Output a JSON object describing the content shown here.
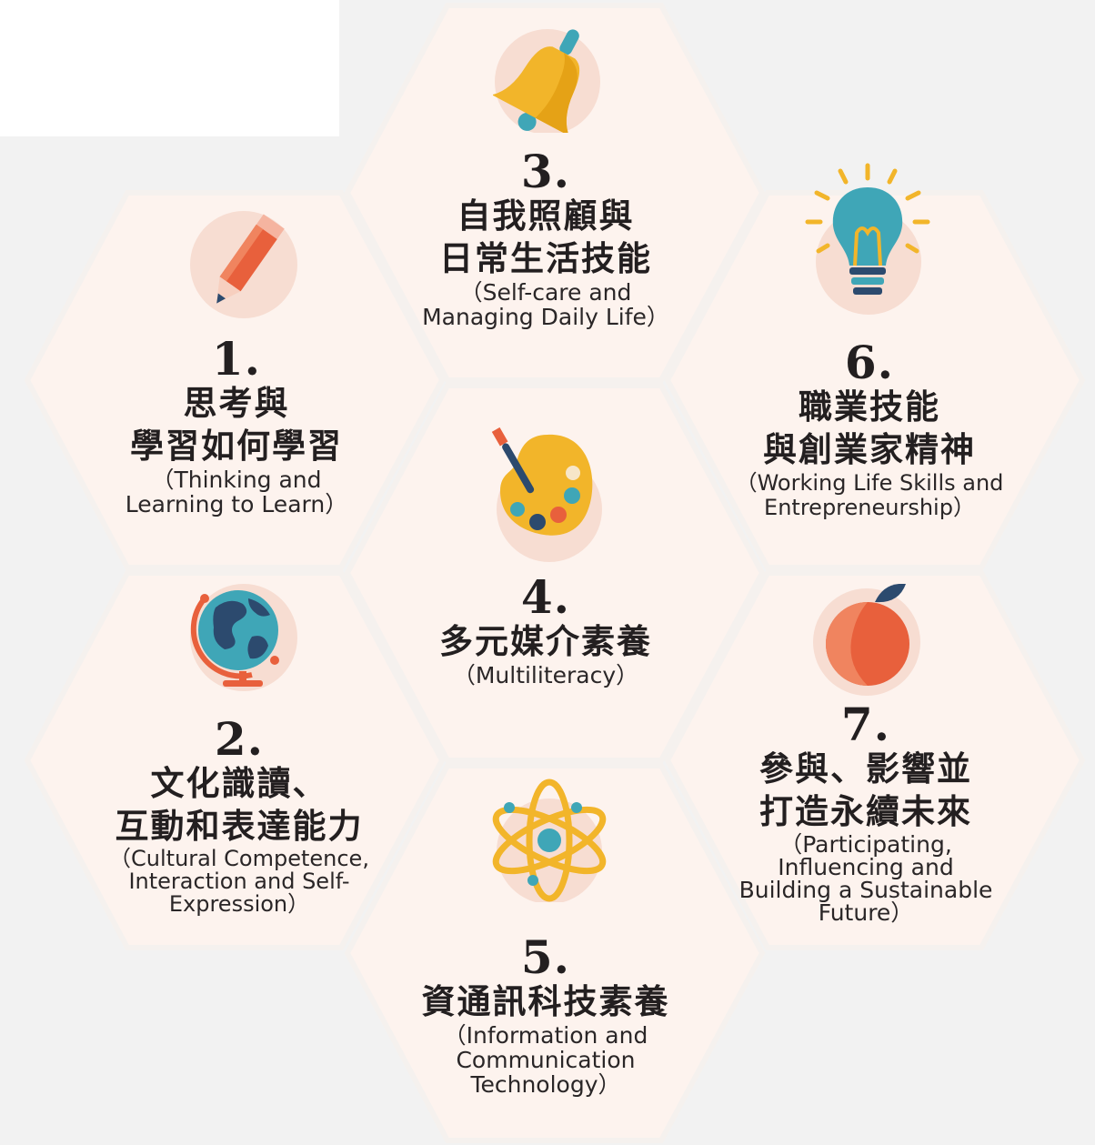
{
  "competencies": [
    {
      "number": "1.",
      "title_lines": [
        "思考與",
        "學習如何學習"
      ],
      "en_lines": [
        "（Thinking and",
        "Learning to Learn）"
      ],
      "icon": "pencil-icon"
    },
    {
      "number": "2.",
      "title_lines": [
        "文化識讀、",
        "互動和表達能力"
      ],
      "en_lines": [
        "（Cultural Competence,",
        "Interaction and Self-",
        "Expression）"
      ],
      "icon": "globe-icon"
    },
    {
      "number": "3.",
      "title_lines": [
        "自我照顧與",
        "日常生活技能"
      ],
      "en_lines": [
        "（Self-care and",
        "Managing Daily Life）"
      ],
      "icon": "bell-icon"
    },
    {
      "number": "4.",
      "title_lines": [
        "多元媒介素養"
      ],
      "en_lines": [
        "（Multiliteracy）"
      ],
      "icon": "palette-icon"
    },
    {
      "number": "5.",
      "title_lines": [
        "資通訊科技素養"
      ],
      "en_lines": [
        "（Information and",
        "Communication",
        "Technology）"
      ],
      "icon": "atom-icon"
    },
    {
      "number": "6.",
      "title_lines": [
        "職業技能",
        "與創業家精神"
      ],
      "en_lines": [
        "（Working Life Skills and",
        "Entrepreneurship）"
      ],
      "icon": "lightbulb-icon"
    },
    {
      "number": "7.",
      "title_lines": [
        "參與、影響並",
        "打造永續未來"
      ],
      "en_lines": [
        "（Participating,",
        "Influencing and",
        "Building a Sustainable",
        "Future）"
      ],
      "icon": "peach-icon"
    }
  ],
  "colors": {
    "hex_fill": "#fdf3ee",
    "icon_circle": "#f7ddd2",
    "orange": "#e8603c",
    "yellow": "#f2b52a",
    "teal": "#3fa6b7",
    "navy": "#2c4a6e"
  }
}
